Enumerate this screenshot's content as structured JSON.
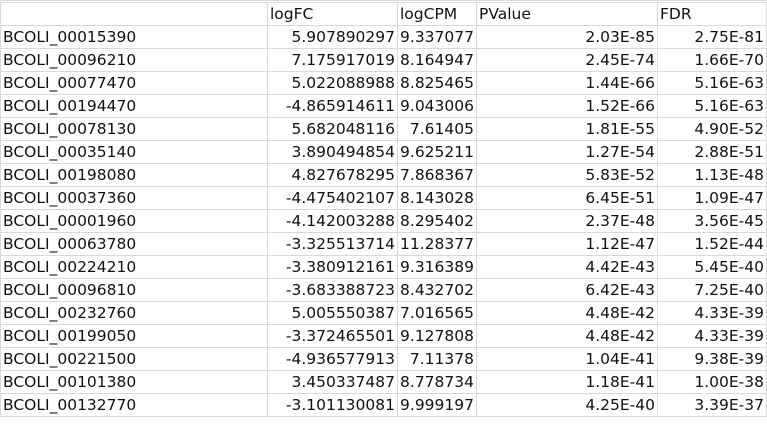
{
  "header": {
    "col_a": "",
    "col_b": "logFC",
    "col_c": "logCPM",
    "col_d": "PValue",
    "col_e": "FDR"
  },
  "rows": [
    {
      "id": "BCOLI_00015390",
      "logFC": "5.907890297",
      "logCPM": "9.337077",
      "pvalue": "2.03E-85",
      "fdr": "2.75E-81"
    },
    {
      "id": "BCOLI_00096210",
      "logFC": "7.175917019",
      "logCPM": "8.164947",
      "pvalue": "2.45E-74",
      "fdr": "1.66E-70"
    },
    {
      "id": "BCOLI_00077470",
      "logFC": "5.022088988",
      "logCPM": "8.825465",
      "pvalue": "1.44E-66",
      "fdr": "5.16E-63"
    },
    {
      "id": "BCOLI_00194470",
      "logFC": "-4.865914611",
      "logCPM": "9.043006",
      "pvalue": "1.52E-66",
      "fdr": "5.16E-63"
    },
    {
      "id": "BCOLI_00078130",
      "logFC": "5.682048116",
      "logCPM": "7.61405",
      "pvalue": "1.81E-55",
      "fdr": "4.90E-52"
    },
    {
      "id": "BCOLI_00035140",
      "logFC": "3.890494854",
      "logCPM": "9.625211",
      "pvalue": "1.27E-54",
      "fdr": "2.88E-51"
    },
    {
      "id": "BCOLI_00198080",
      "logFC": "4.827678295",
      "logCPM": "7.868367",
      "pvalue": "5.83E-52",
      "fdr": "1.13E-48"
    },
    {
      "id": "BCOLI_00037360",
      "logFC": "-4.475402107",
      "logCPM": "8.143028",
      "pvalue": "6.45E-51",
      "fdr": "1.09E-47"
    },
    {
      "id": "BCOLI_00001960",
      "logFC": "-4.142003288",
      "logCPM": "8.295402",
      "pvalue": "2.37E-48",
      "fdr": "3.56E-45"
    },
    {
      "id": "BCOLI_00063780",
      "logFC": "-3.325513714",
      "logCPM": "11.28377",
      "pvalue": "1.12E-47",
      "fdr": "1.52E-44"
    },
    {
      "id": "BCOLI_00224210",
      "logFC": "-3.380912161",
      "logCPM": "9.316389",
      "pvalue": "4.42E-43",
      "fdr": "5.45E-40"
    },
    {
      "id": "BCOLI_00096810",
      "logFC": "-3.683388723",
      "logCPM": "8.432702",
      "pvalue": "6.42E-43",
      "fdr": "7.25E-40"
    },
    {
      "id": "BCOLI_00232760",
      "logFC": "5.005550387",
      "logCPM": "7.016565",
      "pvalue": "4.48E-42",
      "fdr": "4.33E-39"
    },
    {
      "id": "BCOLI_00199050",
      "logFC": "-3.372465501",
      "logCPM": "9.127808",
      "pvalue": "4.48E-42",
      "fdr": "4.33E-39"
    },
    {
      "id": "BCOLI_00221500",
      "logFC": "-4.936577913",
      "logCPM": "7.11378",
      "pvalue": "1.04E-41",
      "fdr": "9.38E-39"
    },
    {
      "id": "BCOLI_00101380",
      "logFC": "3.450337487",
      "logCPM": "8.778734",
      "pvalue": "1.18E-41",
      "fdr": "1.00E-38"
    },
    {
      "id": "BCOLI_00132770",
      "logFC": "-3.101130081",
      "logCPM": "9.999197",
      "pvalue": "4.25E-40",
      "fdr": "3.39E-37"
    }
  ]
}
